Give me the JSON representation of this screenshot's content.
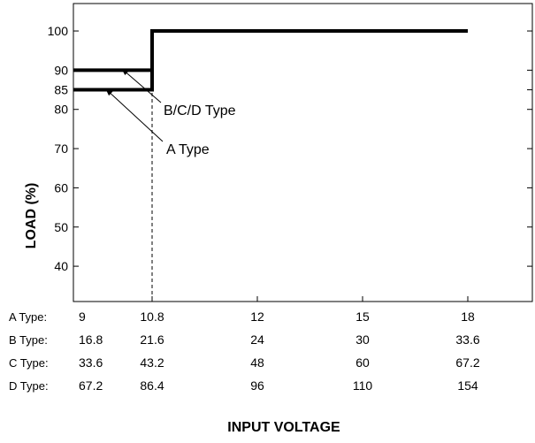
{
  "chart_data": {
    "type": "line",
    "title": "",
    "xlabel": "INPUT VOLTAGE",
    "ylabel": "LOAD (%)",
    "ylim": [
      31,
      107
    ],
    "y_ticks": [
      40,
      50,
      60,
      70,
      80,
      85,
      90,
      100
    ],
    "x_positions": [
      "9",
      "10.8",
      "12",
      "15",
      "18"
    ],
    "grid": false,
    "series": [
      {
        "name": "B/C/D Type",
        "points": [
          {
            "x": "9",
            "y": 90
          },
          {
            "x": "10.8",
            "y": 90
          },
          {
            "x": "10.8",
            "y": 100
          },
          {
            "x": "18",
            "y": 100
          }
        ]
      },
      {
        "name": "A Type",
        "points": [
          {
            "x": "9",
            "y": 85
          },
          {
            "x": "10.8",
            "y": 85
          },
          {
            "x": "10.8",
            "y": 100
          },
          {
            "x": "18",
            "y": 100
          }
        ]
      }
    ],
    "reference_line": {
      "x": "10.8",
      "style": "dashed"
    },
    "voltage_table": [
      {
        "label": "A Type:",
        "values": [
          "9",
          "10.8",
          "12",
          "15",
          "18"
        ]
      },
      {
        "label": "B Type:",
        "values": [
          "16.8",
          "21.6",
          "24",
          "30",
          "33.6"
        ]
      },
      {
        "label": "C Type:",
        "values": [
          "33.6",
          "43.2",
          "48",
          "60",
          "67.2"
        ]
      },
      {
        "label": "D Type:",
        "values": [
          "67.2",
          "86.4",
          "96",
          "110",
          "154"
        ]
      }
    ]
  }
}
